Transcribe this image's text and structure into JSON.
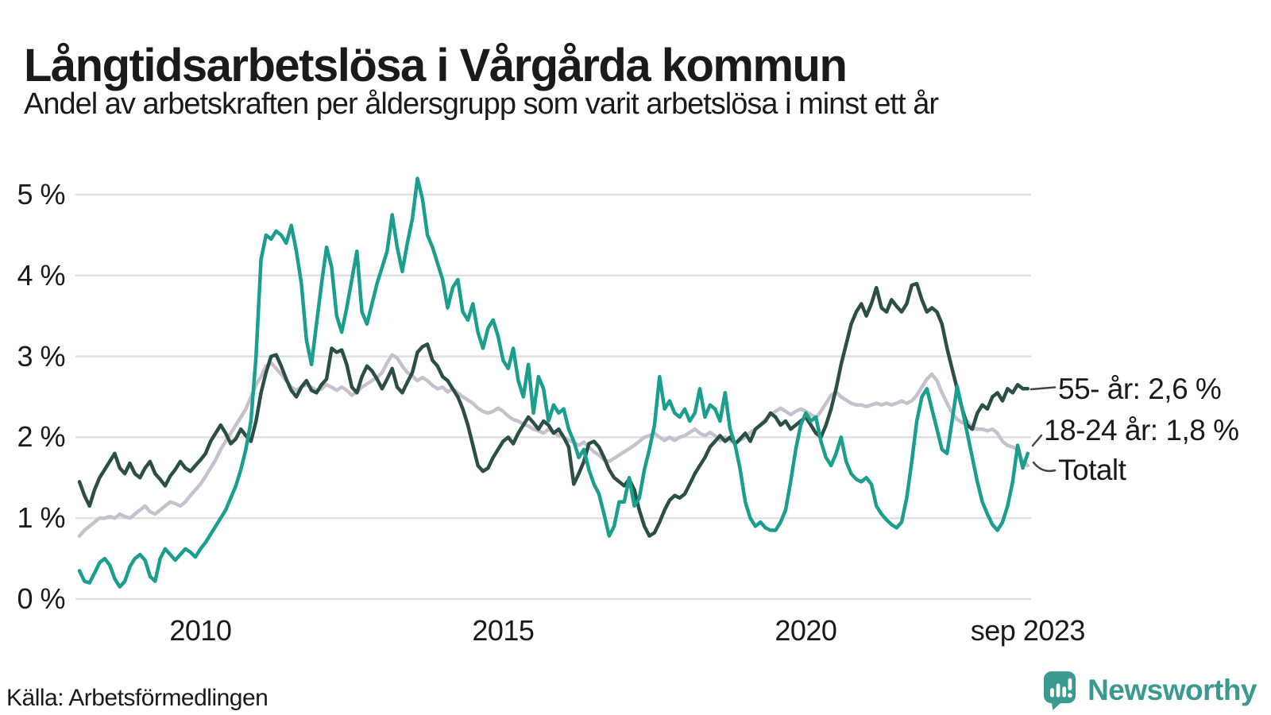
{
  "header": {
    "title": "Långtidsarbetslösa i Vårgårda kommun",
    "subtitle": "Andel av arbetskraften per åldersgrupp som varit arbetslösa i minst ett år"
  },
  "footer": {
    "source": "Källa: Arbetsförmedlingen"
  },
  "branding": {
    "name": "Newsworthy",
    "icon": "newsworthy-speech-bubble-bar-chart-icon",
    "color": "#3a9a8f"
  },
  "colors": {
    "text": "#1a1a1a",
    "gridline": "#e0e0e0",
    "connector": "#444444"
  },
  "chart_data": {
    "type": "line",
    "title": "Långtidsarbetslösa i Vårgårda kommun",
    "subtitle": "Andel av arbetskraften per åldersgrupp som varit arbetslösa i minst ett år",
    "unit": "%",
    "frequency": "monthly",
    "x_start": "2008-01",
    "x_end": "2023-09",
    "ylim": [
      0,
      5.5
    ],
    "grid": "horizontal",
    "legend_position": "right-end-labels",
    "y_tick_labels": [
      "0 %",
      "1 %",
      "2 %",
      "3 %",
      "4 %",
      "5 %"
    ],
    "x_ticks": [
      {
        "label": "2010",
        "month": 24
      },
      {
        "label": "2015",
        "month": 84
      },
      {
        "label": "2020",
        "month": 144
      },
      {
        "label": "sep 2023",
        "month": 188
      }
    ],
    "series": [
      {
        "name": "Totalt",
        "end_label": "Totalt",
        "color": "#c5c2ce",
        "values": [
          0.78,
          0.85,
          0.9,
          0.95,
          1.0,
          1.0,
          1.02,
          1.0,
          1.05,
          1.02,
          1.0,
          1.05,
          1.1,
          1.15,
          1.08,
          1.05,
          1.1,
          1.15,
          1.2,
          1.18,
          1.15,
          1.2,
          1.28,
          1.35,
          1.42,
          1.52,
          1.62,
          1.72,
          1.85,
          1.95,
          2.05,
          2.15,
          2.25,
          2.35,
          2.5,
          2.65,
          2.75,
          2.88,
          2.92,
          2.85,
          2.78,
          2.7,
          2.62,
          2.58,
          2.62,
          2.65,
          2.62,
          2.58,
          2.6,
          2.65,
          2.62,
          2.58,
          2.62,
          2.58,
          2.52,
          2.56,
          2.62,
          2.66,
          2.7,
          2.74,
          2.8,
          2.92,
          3.02,
          2.98,
          2.88,
          2.8,
          2.76,
          2.7,
          2.74,
          2.7,
          2.64,
          2.6,
          2.62,
          2.56,
          2.6,
          2.55,
          2.5,
          2.46,
          2.42,
          2.36,
          2.32,
          2.3,
          2.32,
          2.36,
          2.32,
          2.26,
          2.22,
          2.2,
          2.16,
          2.14,
          2.1,
          2.08,
          2.05,
          2.1,
          2.06,
          2.02,
          2.0,
          1.96,
          1.94,
          1.9,
          1.94,
          1.88,
          1.82,
          1.78,
          1.72,
          1.7,
          1.74,
          1.78,
          1.82,
          1.86,
          1.9,
          1.95,
          2.0,
          2.02,
          2.05,
          2.0,
          1.96,
          2.0,
          1.96,
          2.0,
          2.02,
          2.06,
          2.1,
          2.05,
          2.02,
          2.06,
          2.02,
          1.96,
          2.0,
          1.96,
          1.92,
          1.96,
          2.0,
          2.06,
          2.1,
          2.16,
          2.22,
          2.28,
          2.32,
          2.36,
          2.32,
          2.28,
          2.32,
          2.35,
          2.32,
          2.28,
          2.24,
          2.32,
          2.42,
          2.52,
          2.56,
          2.5,
          2.46,
          2.42,
          2.4,
          2.4,
          2.38,
          2.4,
          2.42,
          2.4,
          2.42,
          2.4,
          2.42,
          2.45,
          2.42,
          2.45,
          2.52,
          2.62,
          2.72,
          2.78,
          2.7,
          2.55,
          2.42,
          2.3,
          2.22,
          2.18,
          2.2,
          2.12,
          2.1,
          2.1,
          2.08,
          2.1,
          2.05,
          1.95,
          1.9,
          1.88,
          1.85,
          1.7,
          1.65
        ]
      },
      {
        "name": "55- år",
        "end_label": "55- år: 2,6 %",
        "end_value": "2,6 %",
        "color": "#2b4f47",
        "values": [
          1.45,
          1.28,
          1.15,
          1.35,
          1.5,
          1.6,
          1.7,
          1.8,
          1.62,
          1.55,
          1.68,
          1.55,
          1.5,
          1.62,
          1.7,
          1.55,
          1.48,
          1.4,
          1.52,
          1.6,
          1.7,
          1.62,
          1.58,
          1.65,
          1.72,
          1.8,
          1.95,
          2.05,
          2.15,
          2.05,
          1.92,
          1.98,
          2.1,
          2.02,
          1.95,
          2.2,
          2.55,
          2.8,
          3.0,
          3.02,
          2.88,
          2.72,
          2.58,
          2.5,
          2.62,
          2.7,
          2.58,
          2.55,
          2.65,
          2.72,
          3.1,
          3.05,
          3.08,
          2.9,
          2.62,
          2.55,
          2.75,
          2.88,
          2.82,
          2.72,
          2.6,
          2.72,
          2.85,
          2.62,
          2.55,
          2.68,
          2.8,
          3.05,
          3.12,
          3.15,
          2.95,
          2.88,
          2.75,
          2.7,
          2.6,
          2.5,
          2.35,
          2.15,
          1.9,
          1.65,
          1.58,
          1.62,
          1.75,
          1.85,
          1.95,
          2.0,
          1.92,
          2.05,
          2.15,
          2.25,
          2.18,
          2.1,
          2.2,
          2.15,
          2.05,
          2.1,
          2.0,
          1.88,
          1.42,
          1.55,
          1.7,
          1.92,
          1.95,
          1.88,
          1.75,
          1.6,
          1.5,
          1.45,
          1.4,
          1.48,
          1.35,
          1.1,
          0.9,
          0.78,
          0.82,
          0.95,
          1.1,
          1.22,
          1.28,
          1.25,
          1.3,
          1.42,
          1.55,
          1.65,
          1.75,
          1.88,
          1.95,
          2.02,
          1.95,
          2.0,
          1.92,
          1.98,
          2.05,
          1.95,
          2.1,
          2.15,
          2.2,
          2.3,
          2.25,
          2.15,
          2.2,
          2.1,
          2.15,
          2.2,
          2.25,
          2.15,
          2.05,
          2.0,
          2.15,
          2.35,
          2.6,
          2.9,
          3.15,
          3.4,
          3.55,
          3.65,
          3.5,
          3.65,
          3.85,
          3.6,
          3.55,
          3.7,
          3.62,
          3.55,
          3.65,
          3.88,
          3.9,
          3.7,
          3.55,
          3.6,
          3.55,
          3.4,
          3.1,
          2.85,
          2.6,
          2.35,
          2.15,
          2.1,
          2.3,
          2.4,
          2.35,
          2.5,
          2.55,
          2.45,
          2.6,
          2.55,
          2.65,
          2.6,
          2.6
        ]
      },
      {
        "name": "18-24 år",
        "end_label": "18-24 år: 1,8 %",
        "end_value": "1,8 %",
        "color": "#1a9e8e",
        "values": [
          0.35,
          0.22,
          0.2,
          0.32,
          0.45,
          0.5,
          0.42,
          0.25,
          0.15,
          0.22,
          0.4,
          0.5,
          0.55,
          0.48,
          0.28,
          0.22,
          0.5,
          0.62,
          0.55,
          0.48,
          0.55,
          0.62,
          0.58,
          0.52,
          0.62,
          0.7,
          0.8,
          0.9,
          1.0,
          1.1,
          1.25,
          1.4,
          1.6,
          1.85,
          2.2,
          3.0,
          4.2,
          4.5,
          4.45,
          4.55,
          4.5,
          4.4,
          4.62,
          4.3,
          3.9,
          3.2,
          2.9,
          3.4,
          3.9,
          4.35,
          4.1,
          3.5,
          3.3,
          3.6,
          3.95,
          4.3,
          3.55,
          3.4,
          3.65,
          3.9,
          4.1,
          4.3,
          4.75,
          4.35,
          4.05,
          4.4,
          4.7,
          5.2,
          4.95,
          4.5,
          4.35,
          4.15,
          3.95,
          3.6,
          3.85,
          3.95,
          3.55,
          3.45,
          3.65,
          3.3,
          3.1,
          3.35,
          3.45,
          3.25,
          2.95,
          2.85,
          3.1,
          2.7,
          2.5,
          2.9,
          2.3,
          2.75,
          2.6,
          2.2,
          2.4,
          2.3,
          2.35,
          2.1,
          1.95,
          1.75,
          1.85,
          1.6,
          1.42,
          1.3,
          1.05,
          0.78,
          0.9,
          1.2,
          1.2,
          1.5,
          1.15,
          1.25,
          1.6,
          1.85,
          2.15,
          2.75,
          2.35,
          2.45,
          2.3,
          2.25,
          2.35,
          2.2,
          2.3,
          2.6,
          2.25,
          2.4,
          2.35,
          2.2,
          2.55,
          2.1,
          1.9,
          1.6,
          1.2,
          1.0,
          0.9,
          0.95,
          0.88,
          0.85,
          0.85,
          0.95,
          1.1,
          1.45,
          1.85,
          2.15,
          2.3,
          2.2,
          2.25,
          1.95,
          1.75,
          1.65,
          1.8,
          2.0,
          1.7,
          1.55,
          1.48,
          1.45,
          1.5,
          1.42,
          1.15,
          1.05,
          0.98,
          0.92,
          0.88,
          0.95,
          1.25,
          1.7,
          2.2,
          2.5,
          2.6,
          2.35,
          2.1,
          1.85,
          1.8,
          2.2,
          2.63,
          2.35,
          2.05,
          1.75,
          1.45,
          1.2,
          1.05,
          0.92,
          0.85,
          0.95,
          1.15,
          1.45,
          1.9,
          1.62,
          1.8
        ]
      }
    ]
  }
}
